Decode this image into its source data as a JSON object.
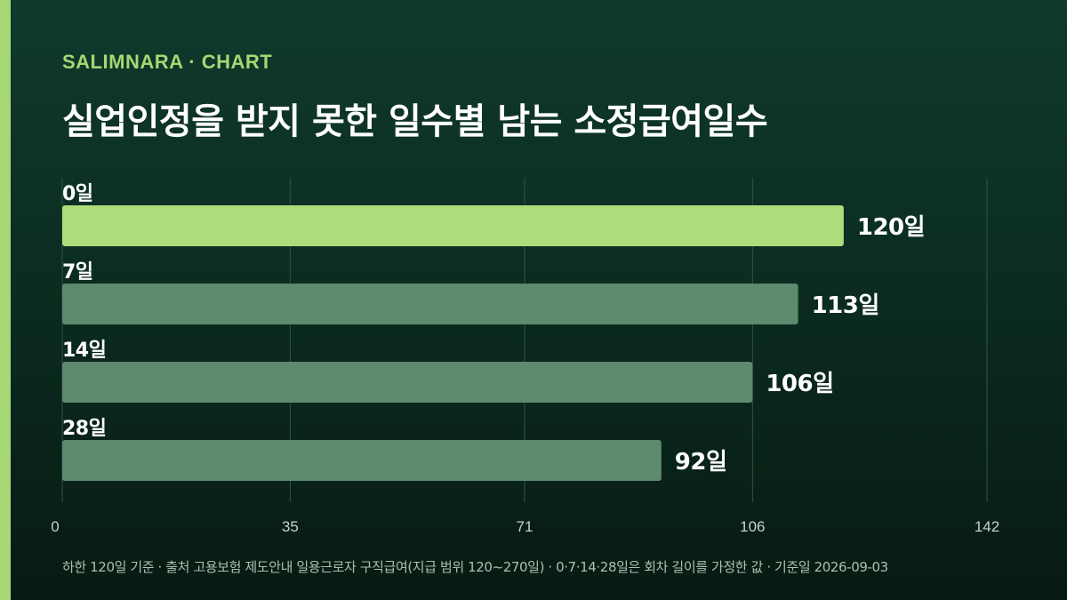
{
  "brand": "SALIMNARA · CHART",
  "title": "실업인정을 받지 못한 일수별 남는 소정급여일수",
  "footnote": "하한 120일 기준 · 출처 고용보험 제도안내 일용근로자 구직급여(지급 범위 120~270일) · 0·7·14·28일은 회차 길이를 가정한 값 · 기준일 2026-09-03",
  "colors": {
    "accent": "#a6d774",
    "bar_highlight": "#aedc7a",
    "bar_default": "#5e8a6e",
    "grid": "#2e5544",
    "axis_text": "#c4d4ca",
    "label_text": "#ffffff"
  },
  "chart_data": {
    "type": "bar",
    "orientation": "horizontal",
    "categories": [
      "0일",
      "7일",
      "14일",
      "28일"
    ],
    "values": [
      120,
      113,
      106,
      92
    ],
    "value_labels": [
      "120일",
      "113일",
      "106일",
      "92일"
    ],
    "highlight_index": 0,
    "xlim": [
      0,
      142
    ],
    "xticks": [
      0,
      35,
      71,
      106,
      142
    ],
    "grid": true,
    "legend": "none"
  }
}
